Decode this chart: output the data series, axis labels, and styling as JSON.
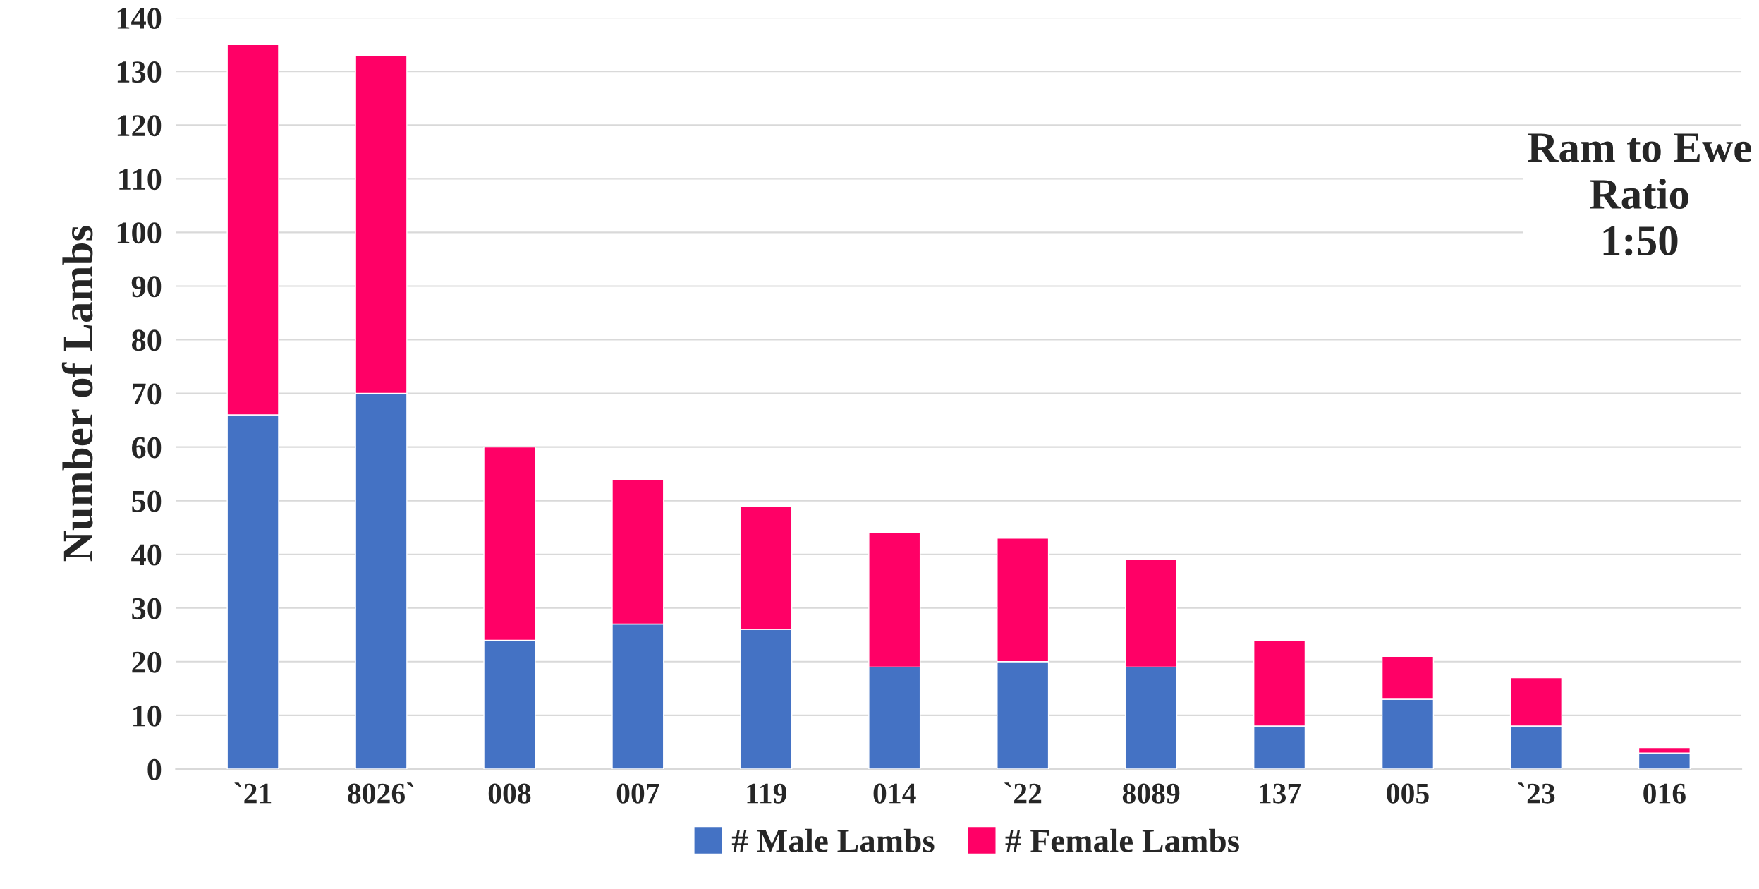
{
  "chart_data": {
    "type": "bar",
    "stacked": true,
    "ylabel": "Number of Lambs",
    "categories": [
      "`21",
      "8026`",
      "008",
      "007",
      "119",
      "014",
      "`22",
      "8089",
      "137",
      "005",
      "`23",
      "016"
    ],
    "series": [
      {
        "name": "# Male Lambs",
        "color": "#4472c4",
        "values": [
          66,
          70,
          24,
          27,
          26,
          19,
          20,
          19,
          8,
          13,
          8,
          3
        ]
      },
      {
        "name": "# Female Lambs",
        "color": "#ff0066",
        "values": [
          69,
          63,
          36,
          27,
          23,
          25,
          23,
          20,
          16,
          8,
          9,
          1
        ]
      }
    ],
    "ylim": [
      0,
      140
    ],
    "yticks": [
      0,
      10,
      20,
      30,
      40,
      50,
      60,
      70,
      80,
      90,
      100,
      110,
      120,
      130,
      140
    ],
    "grid": "y",
    "legend": "bottom",
    "annotations": [
      "Ram to Ewe\nRatio\n1:50"
    ]
  }
}
